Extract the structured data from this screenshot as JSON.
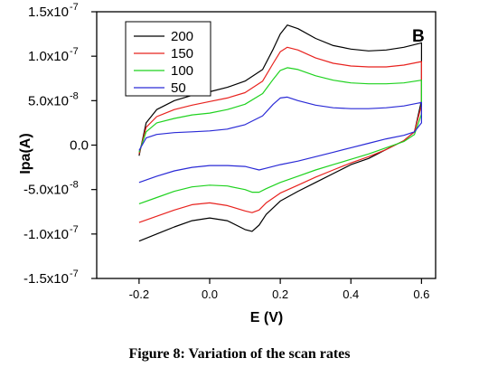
{
  "caption": "Figure 8: Variation of the scan rates",
  "chart_data": {
    "type": "line",
    "panel_label": "B",
    "xlabel": "E (V)",
    "ylabel": "Ipa(A)",
    "xlim": [
      -0.32,
      0.64
    ],
    "ylim": [
      -1.5e-07,
      1.5e-07
    ],
    "x_ticks": [
      -0.2,
      0.0,
      0.2,
      0.4,
      0.6
    ],
    "x_tick_labels": [
      "-0.2",
      "0.0",
      "0.2",
      "0.4",
      "0.6"
    ],
    "y_ticks": [
      -1.5e-07,
      -1e-07,
      -5e-08,
      0,
      5e-08,
      1e-07,
      1.5e-07
    ],
    "y_tick_labels": [
      {
        "mantissa": "-1.5x10",
        "exp": "-7"
      },
      {
        "mantissa": "-1.0x10",
        "exp": "-7"
      },
      {
        "mantissa": "-5.0x10",
        "exp": "-8"
      },
      {
        "mantissa": "0.0",
        "exp": ""
      },
      {
        "mantissa": "5.0x10",
        "exp": "-8"
      },
      {
        "mantissa": "1.0x10",
        "exp": "-7"
      },
      {
        "mantissa": "1.5x10",
        "exp": "-7"
      }
    ],
    "grid": false,
    "legend_position": "top-left",
    "series": [
      {
        "name": "200",
        "color": "#000000",
        "anodic": [
          [
            -0.2,
            -1.2e-08
          ],
          [
            -0.18,
            2.5e-08
          ],
          [
            -0.15,
            4e-08
          ],
          [
            -0.1,
            5e-08
          ],
          [
            -0.05,
            5.6e-08
          ],
          [
            0.0,
            6e-08
          ],
          [
            0.05,
            6.5e-08
          ],
          [
            0.1,
            7.2e-08
          ],
          [
            0.15,
            8.5e-08
          ],
          [
            0.18,
            1.08e-07
          ],
          [
            0.2,
            1.25e-07
          ],
          [
            0.22,
            1.35e-07
          ],
          [
            0.25,
            1.31e-07
          ],
          [
            0.3,
            1.2e-07
          ],
          [
            0.35,
            1.12e-07
          ],
          [
            0.4,
            1.08e-07
          ],
          [
            0.45,
            1.06e-07
          ],
          [
            0.5,
            1.07e-07
          ],
          [
            0.55,
            1.1e-07
          ],
          [
            0.6,
            1.15e-07
          ]
        ],
        "cathodic": [
          [
            0.6,
            1.15e-07
          ],
          [
            0.6,
            5e-08
          ],
          [
            0.58,
            1.5e-08
          ],
          [
            0.55,
            5e-09
          ],
          [
            0.5,
            -5e-09
          ],
          [
            0.45,
            -1.5e-08
          ],
          [
            0.4,
            -2.2e-08
          ],
          [
            0.35,
            -3.2e-08
          ],
          [
            0.3,
            -4.2e-08
          ],
          [
            0.25,
            -5.2e-08
          ],
          [
            0.2,
            -6.3e-08
          ],
          [
            0.16,
            -7.8e-08
          ],
          [
            0.14,
            -9e-08
          ],
          [
            0.12,
            -9.7e-08
          ],
          [
            0.1,
            -9.5e-08
          ],
          [
            0.05,
            -8.5e-08
          ],
          [
            0.0,
            -8.2e-08
          ],
          [
            -0.05,
            -8.5e-08
          ],
          [
            -0.1,
            -9.2e-08
          ],
          [
            -0.15,
            -1e-07
          ],
          [
            -0.2,
            -1.08e-07
          ]
        ]
      },
      {
        "name": "150",
        "color": "#e8231f",
        "anodic": [
          [
            -0.2,
            -1e-08
          ],
          [
            -0.18,
            2e-08
          ],
          [
            -0.15,
            3.2e-08
          ],
          [
            -0.1,
            4e-08
          ],
          [
            -0.05,
            4.5e-08
          ],
          [
            0.0,
            4.9e-08
          ],
          [
            0.05,
            5.3e-08
          ],
          [
            0.1,
            5.9e-08
          ],
          [
            0.15,
            7.2e-08
          ],
          [
            0.18,
            9.2e-08
          ],
          [
            0.2,
            1.05e-07
          ],
          [
            0.22,
            1.1e-07
          ],
          [
            0.25,
            1.07e-07
          ],
          [
            0.3,
            9.8e-08
          ],
          [
            0.35,
            9.2e-08
          ],
          [
            0.4,
            8.9e-08
          ],
          [
            0.45,
            8.8e-08
          ],
          [
            0.5,
            8.8e-08
          ],
          [
            0.55,
            9e-08
          ],
          [
            0.6,
            9.4e-08
          ]
        ],
        "cathodic": [
          [
            0.6,
            9.4e-08
          ],
          [
            0.6,
            4.5e-08
          ],
          [
            0.58,
            1.5e-08
          ],
          [
            0.55,
            5e-09
          ],
          [
            0.5,
            -5e-09
          ],
          [
            0.45,
            -1.3e-08
          ],
          [
            0.4,
            -2e-08
          ],
          [
            0.35,
            -2.8e-08
          ],
          [
            0.3,
            -3.6e-08
          ],
          [
            0.25,
            -4.5e-08
          ],
          [
            0.2,
            -5.4e-08
          ],
          [
            0.16,
            -6.5e-08
          ],
          [
            0.14,
            -7.3e-08
          ],
          [
            0.12,
            -7.6e-08
          ],
          [
            0.1,
            -7.4e-08
          ],
          [
            0.05,
            -6.8e-08
          ],
          [
            0.0,
            -6.5e-08
          ],
          [
            -0.05,
            -6.7e-08
          ],
          [
            -0.1,
            -7.3e-08
          ],
          [
            -0.15,
            -8e-08
          ],
          [
            -0.2,
            -8.7e-08
          ]
        ]
      },
      {
        "name": "100",
        "color": "#1fd21f",
        "anodic": [
          [
            -0.2,
            -8e-09
          ],
          [
            -0.18,
            1.5e-08
          ],
          [
            -0.15,
            2.5e-08
          ],
          [
            -0.1,
            3e-08
          ],
          [
            -0.05,
            3.4e-08
          ],
          [
            0.0,
            3.6e-08
          ],
          [
            0.05,
            4e-08
          ],
          [
            0.1,
            4.6e-08
          ],
          [
            0.15,
            5.8e-08
          ],
          [
            0.18,
            7.4e-08
          ],
          [
            0.2,
            8.4e-08
          ],
          [
            0.22,
            8.7e-08
          ],
          [
            0.25,
            8.5e-08
          ],
          [
            0.3,
            7.8e-08
          ],
          [
            0.35,
            7.3e-08
          ],
          [
            0.4,
            7e-08
          ],
          [
            0.45,
            6.9e-08
          ],
          [
            0.5,
            6.9e-08
          ],
          [
            0.55,
            7e-08
          ],
          [
            0.6,
            7.3e-08
          ]
        ],
        "cathodic": [
          [
            0.6,
            7.3e-08
          ],
          [
            0.6,
            3.5e-08
          ],
          [
            0.58,
            1.2e-08
          ],
          [
            0.55,
            4e-09
          ],
          [
            0.5,
            -3e-09
          ],
          [
            0.45,
            -1e-08
          ],
          [
            0.4,
            -1.6e-08
          ],
          [
            0.35,
            -2.2e-08
          ],
          [
            0.3,
            -2.8e-08
          ],
          [
            0.25,
            -3.5e-08
          ],
          [
            0.2,
            -4.2e-08
          ],
          [
            0.16,
            -4.9e-08
          ],
          [
            0.14,
            -5.3e-08
          ],
          [
            0.12,
            -5.3e-08
          ],
          [
            0.1,
            -5e-08
          ],
          [
            0.05,
            -4.6e-08
          ],
          [
            0.0,
            -4.5e-08
          ],
          [
            -0.05,
            -4.7e-08
          ],
          [
            -0.1,
            -5.2e-08
          ],
          [
            -0.15,
            -5.9e-08
          ],
          [
            -0.2,
            -6.6e-08
          ]
        ]
      },
      {
        "name": "50",
        "color": "#2a2ad6",
        "anodic": [
          [
            -0.2,
            -6e-09
          ],
          [
            -0.18,
            8e-09
          ],
          [
            -0.15,
            1.2e-08
          ],
          [
            -0.1,
            1.4e-08
          ],
          [
            -0.05,
            1.5e-08
          ],
          [
            0.0,
            1.6e-08
          ],
          [
            0.05,
            1.8e-08
          ],
          [
            0.1,
            2.3e-08
          ],
          [
            0.15,
            3.3e-08
          ],
          [
            0.18,
            4.6e-08
          ],
          [
            0.2,
            5.3e-08
          ],
          [
            0.22,
            5.4e-08
          ],
          [
            0.25,
            5e-08
          ],
          [
            0.3,
            4.5e-08
          ],
          [
            0.35,
            4.2e-08
          ],
          [
            0.4,
            4.1e-08
          ],
          [
            0.45,
            4.1e-08
          ],
          [
            0.5,
            4.2e-08
          ],
          [
            0.55,
            4.4e-08
          ],
          [
            0.6,
            4.8e-08
          ]
        ],
        "cathodic": [
          [
            0.6,
            4.8e-08
          ],
          [
            0.6,
            2.5e-08
          ],
          [
            0.58,
            1.5e-08
          ],
          [
            0.55,
            1.1e-08
          ],
          [
            0.5,
            7e-09
          ],
          [
            0.45,
            2e-09
          ],
          [
            0.4,
            -3e-09
          ],
          [
            0.35,
            -8e-09
          ],
          [
            0.3,
            -1.3e-08
          ],
          [
            0.25,
            -1.8e-08
          ],
          [
            0.2,
            -2.2e-08
          ],
          [
            0.16,
            -2.6e-08
          ],
          [
            0.14,
            -2.8e-08
          ],
          [
            0.12,
            -2.6e-08
          ],
          [
            0.1,
            -2.4e-08
          ],
          [
            0.05,
            -2.3e-08
          ],
          [
            0.0,
            -2.3e-08
          ],
          [
            -0.05,
            -2.5e-08
          ],
          [
            -0.1,
            -2.9e-08
          ],
          [
            -0.15,
            -3.5e-08
          ],
          [
            -0.2,
            -4.2e-08
          ]
        ]
      }
    ]
  }
}
